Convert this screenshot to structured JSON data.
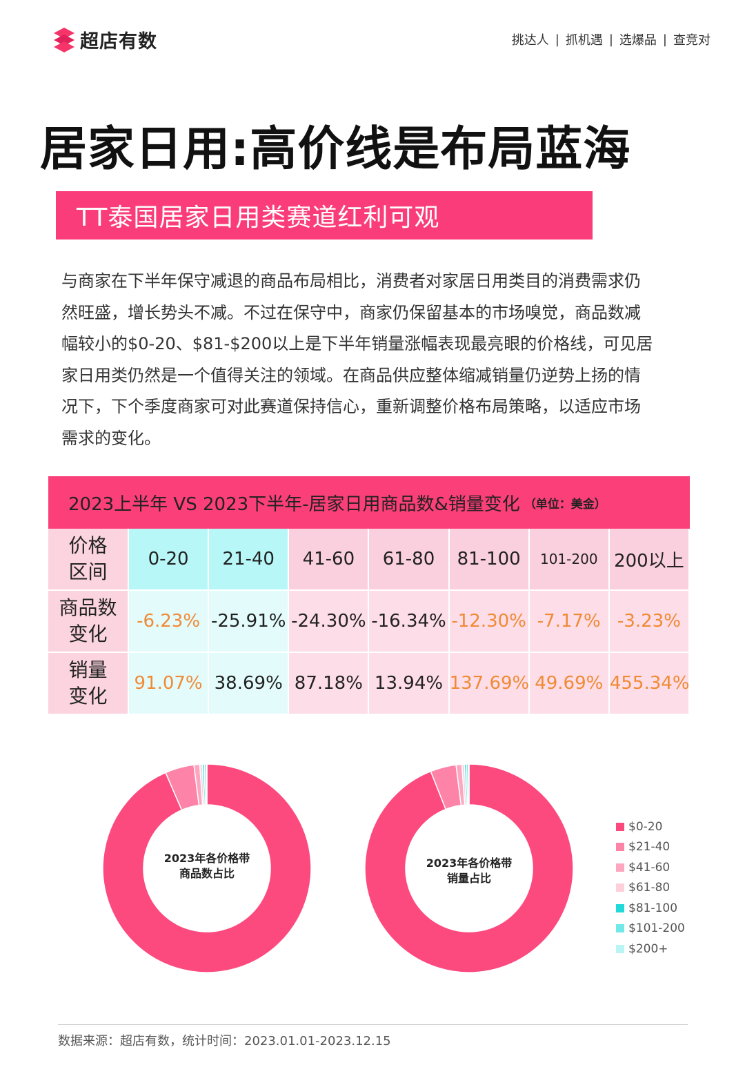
{
  "brand": {
    "name": "超店有数",
    "mark_color": "#f5356a"
  },
  "top_nav": [
    "挑达人",
    "抓机遇",
    "选爆品",
    "查竞对"
  ],
  "page_title": "居家日用:高价线是布局蓝海",
  "banner": {
    "text": "TT泰国居家日用类赛道红利可观",
    "color": "#fa3d7a"
  },
  "paragraph_lines": [
    "与商家在下半年保守减退的商品布局相比，消费者对家居日用类目的消费需求仍",
    "然旺盛，增长势头不减。不过在保守中，商家仍保留基本的市场嗅觉，商品数减",
    "幅较小的$0-20、$81-$200以上是下半年销量涨幅表现最亮眼的价格线，可见居",
    "家日用类仍然是一个值得关注的领域。在商品供应整体缩减销量仍逆势上扬的情",
    "况下，下个季度商家可对此赛道保持信心，重新调整价格布局策略，以适应市场",
    "需求的变化。"
  ],
  "table": {
    "title": "2023上半年 VS 2023下半年-居家日用商品数&销量变化",
    "unit": "（单位：美金）",
    "header_label": [
      "价格",
      "区间"
    ],
    "ranges": [
      "0-20",
      "21-40",
      "41-60",
      "61-80",
      "81-100",
      "101-200",
      "200以上"
    ],
    "rows": [
      {
        "label": [
          "商品数",
          "变化"
        ],
        "values": [
          "-6.23%",
          "-25.91%",
          "-24.30%",
          "-16.34%",
          "-12.30%",
          "-7.17%",
          "-3.23%"
        ]
      },
      {
        "label": [
          "销量",
          "变化"
        ],
        "values": [
          "91.07%",
          "38.69%",
          "87.18%",
          "13.94%",
          "137.69%",
          "49.69%",
          "455.34%"
        ]
      }
    ],
    "highlight_color": "#f08a35"
  },
  "chart_data": [
    {
      "type": "pie",
      "title": "2023年各价格带商品数占比",
      "title_lines": [
        "2023年各价格带",
        "商品数占比"
      ],
      "categories": [
        "$0-20",
        "$21-40",
        "$41-60",
        "$61-80",
        "$81-100",
        "$101-200",
        "$200+"
      ],
      "values": [
        93.5,
        4.5,
        0.9,
        0.4,
        0.3,
        0.3,
        0.1
      ]
    },
    {
      "type": "pie",
      "title": "2023年各价格带销量占比",
      "title_lines": [
        "2023年各价格带",
        "销量占比"
      ],
      "categories": [
        "$0-20",
        "$21-40",
        "$41-60",
        "$61-80",
        "$81-100",
        "$101-200",
        "$200+"
      ],
      "values": [
        94.0,
        4.0,
        0.9,
        0.4,
        0.3,
        0.3,
        0.1
      ]
    }
  ],
  "legend": [
    {
      "label": "$0-20",
      "color": "#fc4a7f"
    },
    {
      "label": "$21-40",
      "color": "#fd84a8"
    },
    {
      "label": "$41-60",
      "color": "#fda6c0"
    },
    {
      "label": "$61-80",
      "color": "#fdd0dc"
    },
    {
      "label": "$81-100",
      "color": "#22d8d8"
    },
    {
      "label": "$101-200",
      "color": "#72e8e8"
    },
    {
      "label": "$200+",
      "color": "#b9f5f5"
    }
  ],
  "footer": "数据来源：超店有数，统计时间：2023.01.01-2023.12.15"
}
